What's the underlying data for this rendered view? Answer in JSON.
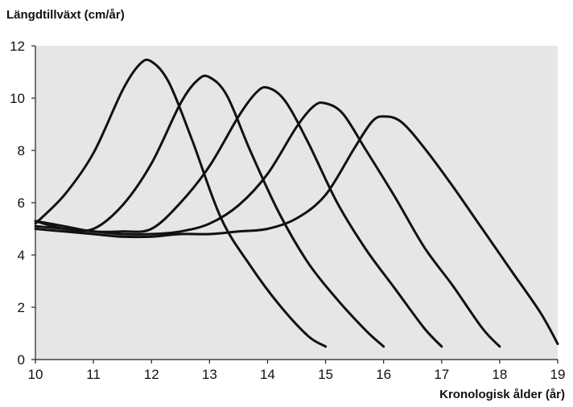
{
  "chart_data": {
    "type": "line",
    "title": "",
    "ylabel": "Längdtillväxt (cm/år)",
    "xlabel": "Kronologisk ålder (år)",
    "xlim": [
      10,
      19
    ],
    "ylim": [
      0,
      12
    ],
    "xticks": [
      "10",
      "11",
      "12",
      "13",
      "14",
      "15",
      "16",
      "17",
      "18",
      "19"
    ],
    "yticks": [
      "0",
      "2",
      "4",
      "6",
      "8",
      "10",
      "12"
    ],
    "grid": false,
    "legend": "none",
    "colors": {
      "plot_background": "#e6e6e6",
      "line": "#111111",
      "axis": "#222222"
    },
    "series": [
      {
        "x": [
          10,
          10.5,
          11,
          11.5,
          11.8,
          12,
          12.3,
          12.7,
          13.2,
          13.7,
          14.2,
          14.7,
          15.0
        ],
        "y": [
          5.2,
          6.3,
          7.9,
          10.3,
          11.3,
          11.4,
          10.6,
          8.4,
          5.4,
          3.6,
          2.1,
          0.9,
          0.5
        ]
      },
      {
        "x": [
          10,
          10.5,
          11,
          11.5,
          12,
          12.5,
          12.8,
          13,
          13.3,
          13.7,
          14.2,
          14.7,
          15.2,
          15.7,
          16.0
        ],
        "y": [
          5.3,
          5.0,
          5.0,
          5.9,
          7.5,
          9.8,
          10.7,
          10.8,
          10.1,
          8.0,
          5.6,
          3.7,
          2.3,
          1.1,
          0.5
        ]
      },
      {
        "x": [
          10,
          10.5,
          11,
          11.5,
          12,
          12.5,
          13,
          13.5,
          13.8,
          14,
          14.3,
          14.7,
          15.2,
          15.7,
          16.2,
          16.7,
          17.0
        ],
        "y": [
          5.3,
          5.1,
          4.9,
          4.9,
          5.0,
          6.0,
          7.4,
          9.3,
          10.2,
          10.4,
          9.9,
          8.3,
          6.0,
          4.2,
          2.7,
          1.2,
          0.5
        ]
      },
      {
        "x": [
          10,
          10.5,
          11,
          11.5,
          12,
          12.5,
          13,
          13.5,
          14,
          14.5,
          14.8,
          15,
          15.3,
          15.7,
          16.2,
          16.7,
          17.2,
          17.7,
          18.0
        ],
        "y": [
          5.1,
          5.0,
          4.9,
          4.8,
          4.8,
          4.9,
          5.2,
          5.9,
          7.1,
          8.9,
          9.7,
          9.8,
          9.4,
          8.0,
          6.2,
          4.3,
          2.8,
          1.2,
          0.5
        ]
      },
      {
        "x": [
          10,
          10.5,
          11,
          11.5,
          12,
          12.5,
          13,
          13.5,
          14,
          14.5,
          15,
          15.5,
          15.8,
          16,
          16.3,
          16.7,
          17.2,
          17.7,
          18.2,
          18.7,
          19.0
        ],
        "y": [
          5.0,
          4.9,
          4.8,
          4.7,
          4.7,
          4.8,
          4.8,
          4.9,
          5.0,
          5.4,
          6.3,
          8.1,
          9.1,
          9.3,
          9.1,
          8.1,
          6.6,
          5.0,
          3.4,
          1.8,
          0.6
        ]
      }
    ]
  }
}
